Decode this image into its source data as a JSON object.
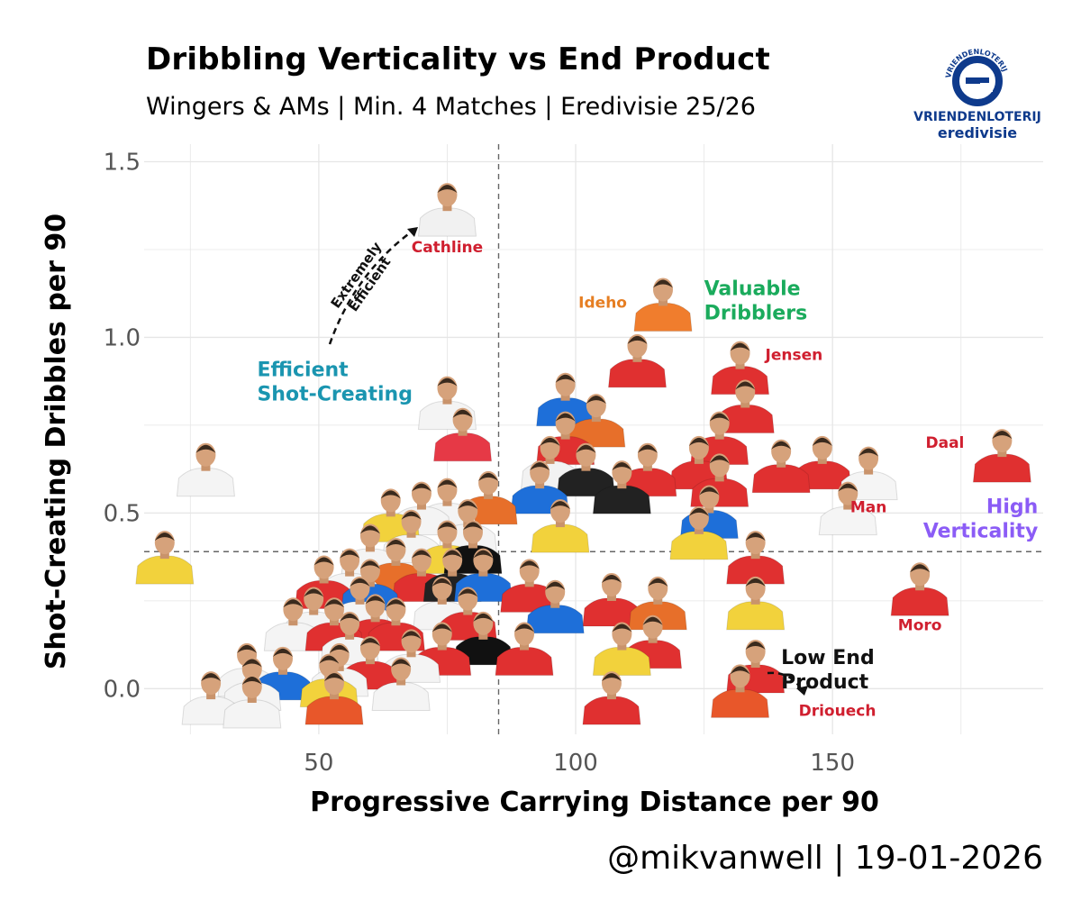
{
  "title": "Dribbling Verticality vs End Product",
  "subtitle": "Wingers & AMs | Min. 4 Matches | Eredivisie 25/26",
  "logo": {
    "arc_text": "VRIENDENLOTERIJ",
    "line1": "VRIENDENLOTERIJ",
    "line2": "eredivisie"
  },
  "footer": "@mikvanwell | 19-01-2026",
  "colors": {
    "brand": "#0e3a8c",
    "red_label": "#d01f2f",
    "orange_label": "#e67e22",
    "green_label": "#1aab5c",
    "teal_label": "#1a95b0",
    "purple_label": "#8b5cf6"
  },
  "chart_data": {
    "type": "scatter",
    "title": "Dribbling Verticality vs End Product",
    "xlabel": "Progressive Carrying Distance per 90",
    "ylabel": "Shot-Creating Dribbles per 90",
    "xlim": [
      16,
      191
    ],
    "ylim": [
      -0.13,
      1.55
    ],
    "xticks": [
      50,
      100,
      150
    ],
    "xtick_labels": [
      "50",
      "100",
      "150"
    ],
    "yticks": [
      0.0,
      0.5,
      1.0,
      1.5
    ],
    "ytick_labels": [
      "0.0",
      "0.5",
      "1.0",
      "1.5"
    ],
    "grid": true,
    "reference_lines": {
      "x_mean": 85,
      "y_mean": 0.39
    },
    "points": [
      {
        "x": 75,
        "y": 1.37,
        "jersey": "#f1f1f1",
        "name": "Cathline",
        "label_color": "#d01f2f"
      },
      {
        "x": 117,
        "y": 1.1,
        "jersey": "#f07d2d",
        "name": "Ideho",
        "label_color": "#e67e22"
      },
      {
        "x": 132,
        "y": 0.92,
        "jersey": "#e03030",
        "name": "Jensen",
        "label_color": "#d01f2f"
      },
      {
        "x": 183,
        "y": 0.67,
        "jersey": "#e03030",
        "name": "Daal",
        "label_color": "#d01f2f"
      },
      {
        "x": 157,
        "y": 0.62,
        "jersey": "#f5f5f5",
        "name": "Man",
        "label_color": "#d01f2f"
      },
      {
        "x": 167,
        "y": 0.29,
        "jersey": "#e03030",
        "name": "Moro",
        "label_color": "#d01f2f"
      },
      {
        "x": 132,
        "y": 0.0,
        "jersey": "#e8572a",
        "name": "Driouech",
        "label_color": "#d01f2f"
      },
      {
        "x": 28,
        "y": 0.63,
        "jersey": "#f4f4f4"
      },
      {
        "x": 20,
        "y": 0.38,
        "jersey": "#f2d23c"
      },
      {
        "x": 75,
        "y": 0.82,
        "jersey": "#f4f4f4"
      },
      {
        "x": 78,
        "y": 0.73,
        "jersey": "#e63946"
      },
      {
        "x": 112,
        "y": 0.94,
        "jersey": "#e03030"
      },
      {
        "x": 98,
        "y": 0.83,
        "jersey": "#1e6fd9"
      },
      {
        "x": 104,
        "y": 0.77,
        "jersey": "#e76f2a"
      },
      {
        "x": 133,
        "y": 0.81,
        "jersey": "#e03030"
      },
      {
        "x": 128,
        "y": 0.72,
        "jersey": "#e03030"
      },
      {
        "x": 98,
        "y": 0.72,
        "jersey": "#e03030"
      },
      {
        "x": 95,
        "y": 0.65,
        "jersey": "#f2f2f2"
      },
      {
        "x": 102,
        "y": 0.63,
        "jersey": "#222222"
      },
      {
        "x": 114,
        "y": 0.63,
        "jersey": "#e03030"
      },
      {
        "x": 109,
        "y": 0.58,
        "jersey": "#222222"
      },
      {
        "x": 124,
        "y": 0.65,
        "jersey": "#e03030"
      },
      {
        "x": 140,
        "y": 0.64,
        "jersey": "#e03030"
      },
      {
        "x": 128,
        "y": 0.6,
        "jersey": "#e03030"
      },
      {
        "x": 126,
        "y": 0.51,
        "jersey": "#1e6fd9"
      },
      {
        "x": 93,
        "y": 0.58,
        "jersey": "#1e6fd9"
      },
      {
        "x": 148,
        "y": 0.65,
        "jersey": "#e03030"
      },
      {
        "x": 153,
        "y": 0.52,
        "jersey": "#f5f5f5"
      },
      {
        "x": 97,
        "y": 0.47,
        "jersey": "#f2d23c"
      },
      {
        "x": 70,
        "y": 0.52,
        "jersey": "#f4f4f4"
      },
      {
        "x": 64,
        "y": 0.5,
        "jersey": "#f2d23c"
      },
      {
        "x": 75,
        "y": 0.53,
        "jersey": "#f4f4f4"
      },
      {
        "x": 83,
        "y": 0.55,
        "jersey": "#e76f2a"
      },
      {
        "x": 79,
        "y": 0.47,
        "jersey": "#f4f4f4"
      },
      {
        "x": 124,
        "y": 0.45,
        "jersey": "#f2d23c"
      },
      {
        "x": 135,
        "y": 0.38,
        "jersey": "#e03030"
      },
      {
        "x": 60,
        "y": 0.4,
        "jersey": "#f4f4f4"
      },
      {
        "x": 68,
        "y": 0.44,
        "jersey": "#f4f4f4"
      },
      {
        "x": 75,
        "y": 0.41,
        "jersey": "#f2d23c"
      },
      {
        "x": 65,
        "y": 0.36,
        "jersey": "#e76f2a"
      },
      {
        "x": 80,
        "y": 0.41,
        "jersey": "#111111"
      },
      {
        "x": 70,
        "y": 0.33,
        "jersey": "#e03030"
      },
      {
        "x": 76,
        "y": 0.33,
        "jersey": "#222222"
      },
      {
        "x": 82,
        "y": 0.33,
        "jersey": "#1e6fd9"
      },
      {
        "x": 51,
        "y": 0.31,
        "jersey": "#e03030"
      },
      {
        "x": 56,
        "y": 0.33,
        "jersey": "#f4f4f4"
      },
      {
        "x": 60,
        "y": 0.3,
        "jersey": "#1e6fd9"
      },
      {
        "x": 74,
        "y": 0.25,
        "jersey": "#f4f4f4"
      },
      {
        "x": 79,
        "y": 0.22,
        "jersey": "#e03030"
      },
      {
        "x": 49,
        "y": 0.22,
        "jersey": "#f4f4f4"
      },
      {
        "x": 45,
        "y": 0.19,
        "jersey": "#f4f4f4"
      },
      {
        "x": 53,
        "y": 0.19,
        "jersey": "#e03030"
      },
      {
        "x": 56,
        "y": 0.15,
        "jersey": "#f4f4f4"
      },
      {
        "x": 61,
        "y": 0.2,
        "jersey": "#e03030"
      },
      {
        "x": 65,
        "y": 0.19,
        "jersey": "#e03030"
      },
      {
        "x": 58,
        "y": 0.25,
        "jersey": "#f4f4f4"
      },
      {
        "x": 96,
        "y": 0.24,
        "jersey": "#1e6fd9"
      },
      {
        "x": 107,
        "y": 0.26,
        "jersey": "#e03030"
      },
      {
        "x": 116,
        "y": 0.25,
        "jersey": "#e76f2a"
      },
      {
        "x": 135,
        "y": 0.25,
        "jersey": "#f2d23c"
      },
      {
        "x": 109,
        "y": 0.12,
        "jersey": "#f2d23c"
      },
      {
        "x": 115,
        "y": 0.14,
        "jersey": "#e03030"
      },
      {
        "x": 82,
        "y": 0.15,
        "jersey": "#111111"
      },
      {
        "x": 90,
        "y": 0.12,
        "jersey": "#e03030"
      },
      {
        "x": 74,
        "y": 0.12,
        "jersey": "#e03030"
      },
      {
        "x": 68,
        "y": 0.1,
        "jersey": "#f4f4f4"
      },
      {
        "x": 60,
        "y": 0.08,
        "jersey": "#e03030"
      },
      {
        "x": 54,
        "y": 0.06,
        "jersey": "#f4f4f4"
      },
      {
        "x": 43,
        "y": 0.05,
        "jersey": "#1e6fd9"
      },
      {
        "x": 36,
        "y": 0.06,
        "jersey": "#f4f4f4"
      },
      {
        "x": 37,
        "y": 0.02,
        "jersey": "#f4f4f4"
      },
      {
        "x": 66,
        "y": 0.02,
        "jersey": "#f4f4f4"
      },
      {
        "x": 52,
        "y": 0.03,
        "jersey": "#f2d23c"
      },
      {
        "x": 53,
        "y": -0.02,
        "jersey": "#e8572a"
      },
      {
        "x": 29,
        "y": -0.02,
        "jersey": "#f4f4f4"
      },
      {
        "x": 37,
        "y": -0.03,
        "jersey": "#f4f4f4"
      },
      {
        "x": 107,
        "y": -0.02,
        "jersey": "#e03030"
      },
      {
        "x": 135,
        "y": 0.07,
        "jersey": "#e03030"
      },
      {
        "x": 91,
        "y": 0.3,
        "jersey": "#e03030"
      }
    ],
    "quadrant_labels": [
      {
        "lines": [
          "Valuable",
          "Dribblers"
        ],
        "x": 125,
        "y": 1.12,
        "color": "#1aab5c",
        "align": "start"
      },
      {
        "lines": [
          "Efficient",
          "Shot-Creating"
        ],
        "x": 38,
        "y": 0.89,
        "color": "#1a95b0",
        "align": "start"
      },
      {
        "lines": [
          "High",
          "Verticality"
        ],
        "x": 190,
        "y": 0.5,
        "color": "#8b5cf6",
        "align": "end"
      },
      {
        "lines": [
          "Low End",
          "Product"
        ],
        "x": 140,
        "y": 0.07,
        "color": "#111111",
        "align": "start"
      }
    ],
    "annotations": [
      {
        "lines": [
          "Extremely",
          "Efficient"
        ],
        "x": 58,
        "y": 1.17,
        "rotation": -55
      }
    ]
  }
}
